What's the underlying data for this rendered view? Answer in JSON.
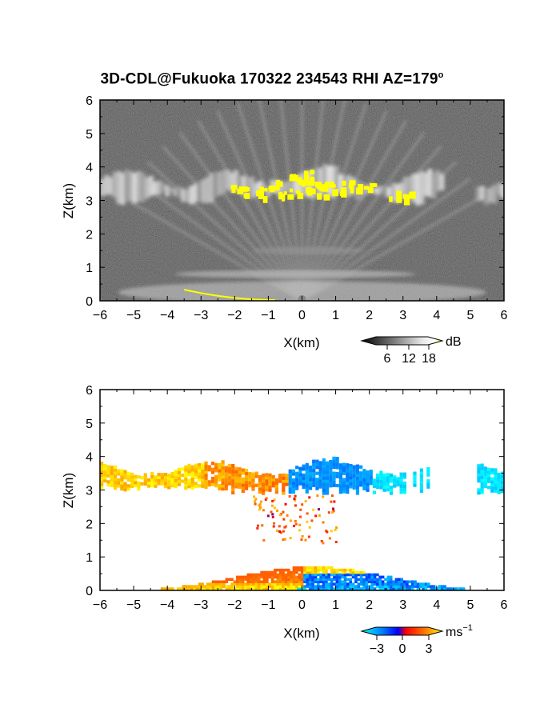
{
  "title": "3D-CDL@Fukuoka 170322 234543 RHI AZ=179",
  "title_superscript": "o",
  "chart_data": [
    {
      "type": "heatmap",
      "panel": "reflectivity",
      "xlabel": "X(km)",
      "ylabel": "Z(km)",
      "xlim": [
        -6,
        6
      ],
      "ylim": [
        0,
        6
      ],
      "xticks": [
        -6,
        -5,
        -4,
        -3,
        -2,
        -1,
        0,
        1,
        2,
        3,
        4,
        5,
        6
      ],
      "yticks": [
        0,
        1,
        2,
        3,
        4,
        5,
        6
      ],
      "colorbar": {
        "unit": "dB",
        "ticks": [
          "6",
          "12",
          "18"
        ],
        "colors": [
          "#000000",
          "#ffffff",
          "#ffff00"
        ]
      },
      "features": [
        {
          "label": "",
          "z_km": [
            3.0,
            3.9
          ],
          "x_km": [
            -6,
            6
          ]
        },
        {
          "label": "",
          "z_km": [
            0.0,
            0.8
          ],
          "x_km": [
            -6,
            6
          ]
        }
      ]
    },
    {
      "type": "heatmap",
      "panel": "velocity",
      "xlabel": "X(km)",
      "ylabel": "Z(km)",
      "xlim": [
        -6,
        6
      ],
      "ylim": [
        0,
        6
      ],
      "xticks": [
        -6,
        -5,
        -4,
        -3,
        -2,
        -1,
        0,
        1,
        2,
        3,
        4,
        5,
        6
      ],
      "yticks": [
        0,
        1,
        2,
        3,
        4,
        5,
        6
      ],
      "colorbar": {
        "unit": "ms",
        "unit_superscript": "−1",
        "ticks": [
          "−3",
          "0",
          "3"
        ],
        "colors": [
          "#00ffff",
          "#0000ff",
          "#ff0000",
          "#ffff00"
        ]
      },
      "features": [
        {
          "label": "",
          "z_km": [
            2.7,
            3.9
          ],
          "x_km": [
            -6,
            6
          ]
        },
        {
          "label": "",
          "z_km": [
            0.0,
            0.9
          ],
          "x_km": [
            -4.2,
            4.8
          ]
        }
      ]
    }
  ]
}
